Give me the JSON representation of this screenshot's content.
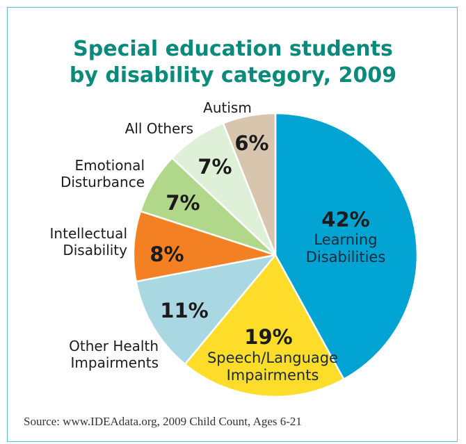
{
  "chart_data": {
    "type": "pie",
    "title": "Special education students by disability category, 2009",
    "title_lines": [
      "Special education students",
      "by disability category, 2009"
    ],
    "slices": [
      {
        "label": "Learning Disabilities",
        "label_lines": [
          "Learning",
          "Disabilities"
        ],
        "value": 42,
        "value_label": "42%",
        "color": "#00a3d2"
      },
      {
        "label": "Speech/Language Impairments",
        "label_lines": [
          "Speech/Language",
          "Impairments"
        ],
        "value": 19,
        "value_label": "19%",
        "color": "#fddc2a"
      },
      {
        "label": "Other Health Impairments",
        "label_lines": [
          "Other Health",
          "Impairments"
        ],
        "value": 11,
        "value_label": "11%",
        "color": "#aad8e2"
      },
      {
        "label": "Intellectual Disability",
        "label_lines": [
          "Intellectual",
          "Disability"
        ],
        "value": 8,
        "value_label": "8%",
        "color": "#f48024"
      },
      {
        "label": "Emotional Disturbance",
        "label_lines": [
          "Emotional",
          "Disturbance"
        ],
        "value": 7,
        "value_label": "7%",
        "color": "#b1d78b"
      },
      {
        "label": "All Others",
        "label_lines": [
          "All Others"
        ],
        "value": 7,
        "value_label": "7%",
        "color": "#dff0d8"
      },
      {
        "label": "Autism",
        "label_lines": [
          "Autism"
        ],
        "value": 6,
        "value_label": "6%",
        "color": "#d8c5ad"
      }
    ]
  },
  "source": "Source: www.IDEAdata.org,  2009 Child Count, Ages 6-21"
}
